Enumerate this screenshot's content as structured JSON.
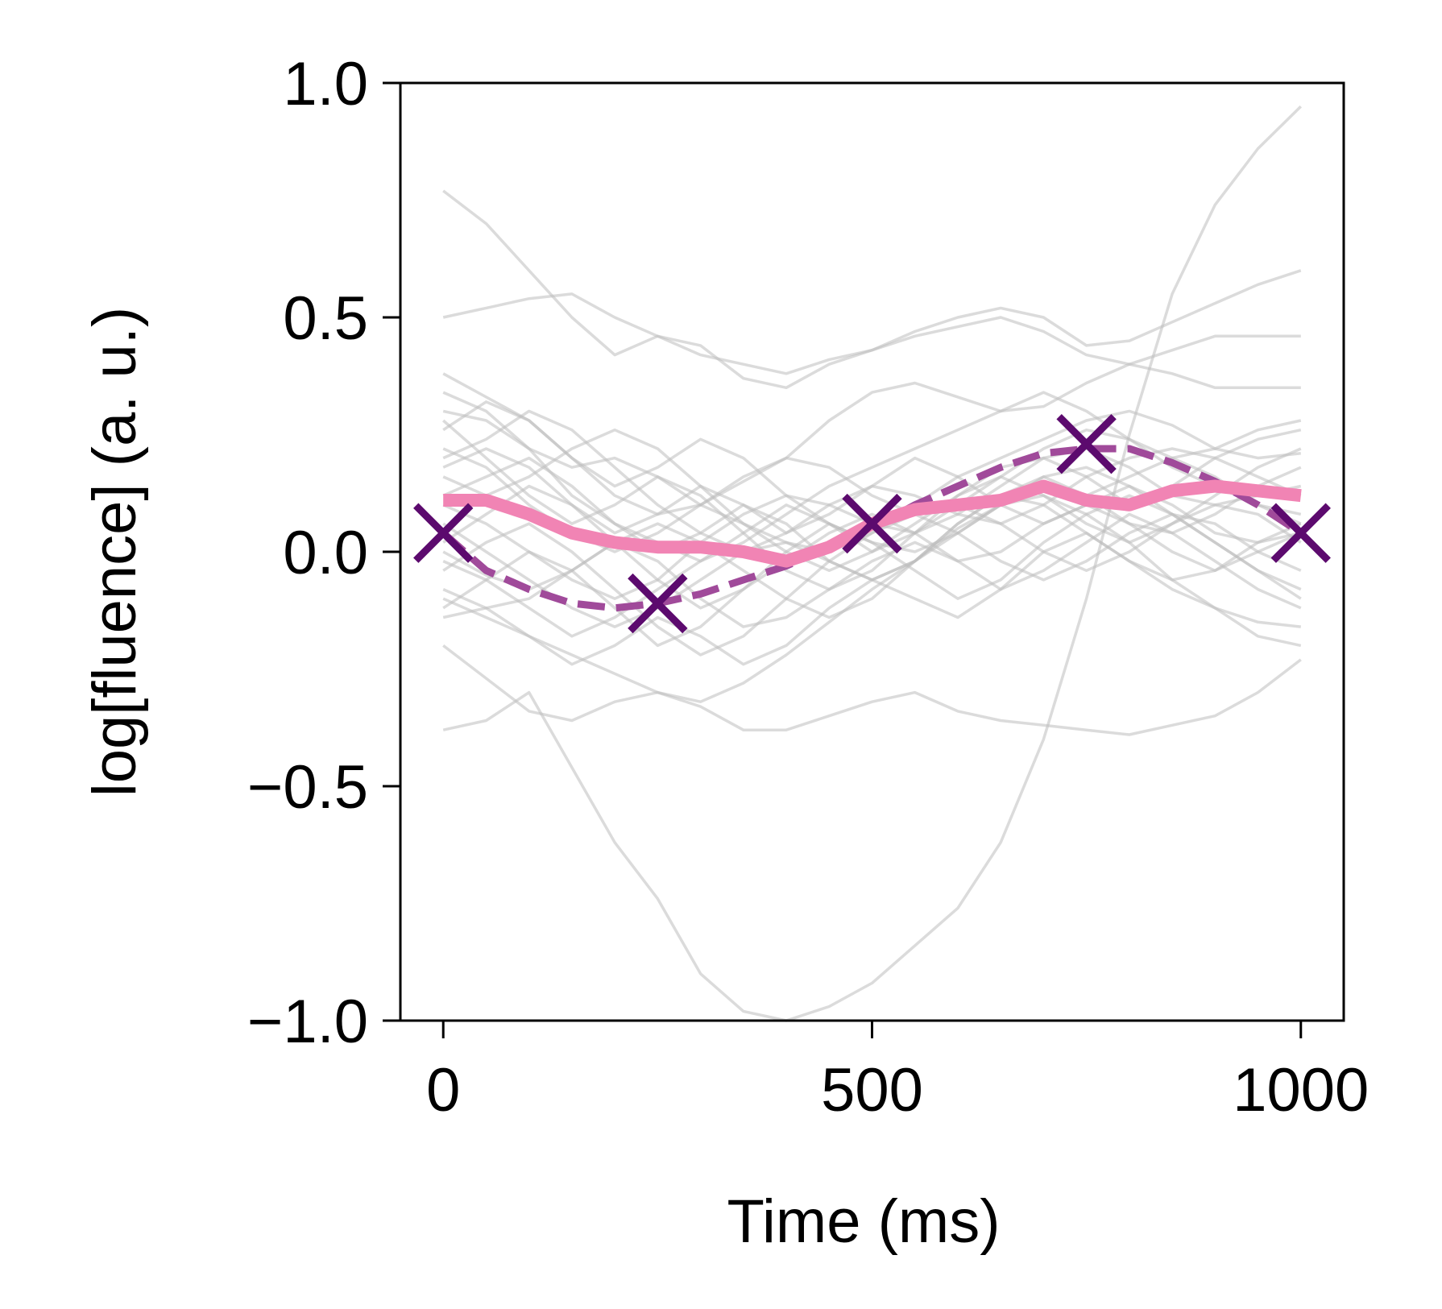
{
  "chart_data": {
    "type": "line",
    "xlabel": "Time (ms)",
    "ylabel": "log[fluence] (a. u.)",
    "xlim": [
      -50,
      1050
    ],
    "ylim": [
      -1.0,
      1.0
    ],
    "x_ticks": [
      0,
      500,
      1000
    ],
    "x_tick_labels": [
      "0",
      "500",
      "1000"
    ],
    "y_ticks": [
      -1.0,
      -0.5,
      0.0,
      0.5,
      1.0
    ],
    "y_tick_labels": [
      "−1.0",
      "−0.5",
      "0.0",
      "0.5",
      "1.0"
    ],
    "grid": false,
    "legend": "none",
    "colors": {
      "traces": "#bdbdbd",
      "mean": "#f184b4",
      "fit": "#a04a9a",
      "markers": "#5c0a6e"
    },
    "mean": {
      "x": [
        0,
        50,
        100,
        150,
        200,
        250,
        300,
        350,
        400,
        450,
        500,
        550,
        600,
        650,
        700,
        750,
        800,
        850,
        900,
        950,
        1000
      ],
      "values": [
        0.11,
        0.11,
        0.08,
        0.04,
        0.02,
        0.01,
        0.01,
        0.0,
        -0.02,
        0.01,
        0.06,
        0.09,
        0.1,
        0.11,
        0.14,
        0.11,
        0.1,
        0.13,
        0.14,
        0.13,
        0.12
      ]
    },
    "fit": {
      "x": [
        0,
        50,
        100,
        150,
        200,
        250,
        300,
        350,
        400,
        450,
        500,
        550,
        600,
        650,
        700,
        750,
        800,
        850,
        900,
        950,
        1000
      ],
      "values": [
        0.04,
        -0.04,
        -0.08,
        -0.11,
        -0.12,
        -0.11,
        -0.09,
        -0.06,
        -0.03,
        0.01,
        0.05,
        0.1,
        0.14,
        0.18,
        0.21,
        0.22,
        0.22,
        0.19,
        0.15,
        0.1,
        0.04
      ]
    },
    "markers": {
      "x": [
        0,
        250,
        500,
        750,
        1000
      ],
      "values": [
        0.04,
        -0.11,
        0.06,
        0.23,
        0.04
      ]
    },
    "traces": [
      {
        "x": [
          0,
          50,
          100,
          150,
          200,
          250,
          300,
          350,
          400,
          450,
          500,
          550,
          600,
          650,
          700,
          750,
          800,
          850,
          900,
          950,
          1000
        ],
        "values": [
          -0.38,
          -0.36,
          -0.3,
          -0.46,
          -0.62,
          -0.74,
          -0.9,
          -0.98,
          -1.0,
          -0.97,
          -0.92,
          -0.84,
          -0.76,
          -0.62,
          -0.4,
          -0.1,
          0.25,
          0.55,
          0.74,
          0.86,
          0.95
        ]
      },
      {
        "x": [
          0,
          50,
          100,
          150,
          200,
          250,
          300,
          350,
          400,
          450,
          500,
          550,
          600,
          650,
          700,
          750,
          800,
          850,
          900,
          950,
          1000
        ],
        "values": [
          0.77,
          0.7,
          0.6,
          0.5,
          0.42,
          0.46,
          0.44,
          0.37,
          0.35,
          0.4,
          0.43,
          0.47,
          0.5,
          0.52,
          0.5,
          0.44,
          0.45,
          0.49,
          0.53,
          0.57,
          0.6
        ]
      },
      {
        "x": [
          0,
          50,
          100,
          150,
          200,
          250,
          300,
          350,
          400,
          450,
          500,
          550,
          600,
          650,
          700,
          750,
          800,
          850,
          900,
          950,
          1000
        ],
        "values": [
          0.5,
          0.52,
          0.54,
          0.55,
          0.5,
          0.46,
          0.42,
          0.4,
          0.38,
          0.41,
          0.43,
          0.46,
          0.48,
          0.5,
          0.47,
          0.42,
          0.4,
          0.43,
          0.46,
          0.46,
          0.46
        ]
      },
      {
        "x": [
          0,
          50,
          100,
          150,
          200,
          250,
          300,
          350,
          400,
          450,
          500,
          550,
          600,
          650,
          700,
          750,
          800,
          850,
          900,
          950,
          1000
        ],
        "values": [
          -0.2,
          -0.27,
          -0.34,
          -0.36,
          -0.32,
          -0.3,
          -0.33,
          -0.38,
          -0.38,
          -0.35,
          -0.32,
          -0.3,
          -0.34,
          -0.36,
          -0.37,
          -0.38,
          -0.39,
          -0.37,
          -0.35,
          -0.3,
          -0.23
        ]
      },
      {
        "x": [
          0,
          50,
          100,
          150,
          200,
          250,
          300,
          350,
          400,
          450,
          500,
          550,
          600,
          650,
          700,
          750,
          800,
          850,
          900,
          950,
          1000
        ],
        "values": [
          0.38,
          0.33,
          0.28,
          0.2,
          0.12,
          0.08,
          0.1,
          0.15,
          0.2,
          0.28,
          0.34,
          0.36,
          0.33,
          0.3,
          0.31,
          0.36,
          0.4,
          0.38,
          0.35,
          0.35,
          0.35
        ]
      },
      {
        "x": [
          0,
          50,
          100,
          150,
          200,
          250,
          300,
          350,
          400,
          450,
          500,
          550,
          600,
          650,
          700,
          750,
          800,
          850,
          900,
          950,
          1000
        ],
        "values": [
          -0.1,
          -0.14,
          -0.18,
          -0.22,
          -0.26,
          -0.3,
          -0.32,
          -0.28,
          -0.22,
          -0.15,
          -0.08,
          -0.02,
          0.05,
          0.1,
          0.12,
          0.08,
          0.02,
          -0.06,
          -0.12,
          -0.18,
          -0.2
        ]
      },
      {
        "x": [
          0,
          50,
          100,
          150,
          200,
          250,
          300,
          350,
          400,
          450,
          500,
          550,
          600,
          650,
          700,
          750,
          800,
          850,
          900,
          950,
          1000
        ],
        "values": [
          0.3,
          0.28,
          0.22,
          0.18,
          0.2,
          0.16,
          0.1,
          0.06,
          0.02,
          0.0,
          0.04,
          0.1,
          0.16,
          0.2,
          0.24,
          0.28,
          0.3,
          0.27,
          0.22,
          0.2,
          0.21
        ]
      },
      {
        "x": [
          0,
          50,
          100,
          150,
          200,
          250,
          300,
          350,
          400,
          450,
          500,
          550,
          600,
          650,
          700,
          750,
          800,
          850,
          900,
          950,
          1000
        ],
        "values": [
          0.0,
          -0.05,
          -0.08,
          -0.04,
          0.02,
          0.06,
          0.02,
          -0.04,
          -0.1,
          -0.14,
          -0.1,
          -0.02,
          0.06,
          0.12,
          0.16,
          0.18,
          0.14,
          0.08,
          0.02,
          -0.04,
          -0.08
        ]
      },
      {
        "x": [
          0,
          50,
          100,
          150,
          200,
          250,
          300,
          350,
          400,
          450,
          500,
          550,
          600,
          650,
          700,
          750,
          800,
          850,
          900,
          950,
          1000
        ],
        "values": [
          0.2,
          0.24,
          0.3,
          0.26,
          0.18,
          0.1,
          0.04,
          0.0,
          0.04,
          0.1,
          0.14,
          0.12,
          0.08,
          0.06,
          0.1,
          0.16,
          0.2,
          0.22,
          0.2,
          0.16,
          0.12
        ]
      },
      {
        "x": [
          0,
          50,
          100,
          150,
          200,
          250,
          300,
          350,
          400,
          450,
          500,
          550,
          600,
          650,
          700,
          750,
          800,
          850,
          900,
          950,
          1000
        ],
        "values": [
          -0.14,
          -0.12,
          -0.18,
          -0.24,
          -0.2,
          -0.14,
          -0.18,
          -0.24,
          -0.2,
          -0.12,
          -0.06,
          -0.1,
          -0.14,
          -0.08,
          0.0,
          0.04,
          -0.02,
          -0.08,
          -0.12,
          -0.15,
          -0.16
        ]
      },
      {
        "x": [
          0,
          50,
          100,
          150,
          200,
          250,
          300,
          350,
          400,
          450,
          500,
          550,
          600,
          650,
          700,
          750,
          800,
          850,
          900,
          950,
          1000
        ],
        "values": [
          0.1,
          0.06,
          0.0,
          -0.06,
          -0.1,
          -0.06,
          0.02,
          0.08,
          0.12,
          0.1,
          0.06,
          0.04,
          0.08,
          0.14,
          0.2,
          0.22,
          0.18,
          0.12,
          0.1,
          0.12,
          0.14
        ]
      },
      {
        "x": [
          0,
          50,
          100,
          150,
          200,
          250,
          300,
          350,
          400,
          450,
          500,
          550,
          600,
          650,
          700,
          750,
          800,
          850,
          900,
          950,
          1000
        ],
        "values": [
          0.26,
          0.32,
          0.28,
          0.2,
          0.14,
          0.18,
          0.24,
          0.2,
          0.12,
          0.06,
          0.02,
          0.0,
          0.04,
          0.1,
          0.16,
          0.12,
          0.06,
          0.04,
          0.08,
          0.14,
          0.18
        ]
      },
      {
        "x": [
          0,
          50,
          100,
          150,
          200,
          250,
          300,
          350,
          400,
          450,
          500,
          550,
          600,
          650,
          700,
          750,
          800,
          850,
          900,
          950,
          1000
        ],
        "values": [
          -0.04,
          0.02,
          0.06,
          0.0,
          -0.08,
          -0.16,
          -0.22,
          -0.18,
          -0.1,
          -0.02,
          0.04,
          0.08,
          0.04,
          -0.02,
          -0.06,
          -0.02,
          0.04,
          0.08,
          0.06,
          0.0,
          -0.04
        ]
      },
      {
        "x": [
          0,
          50,
          100,
          150,
          200,
          250,
          300,
          350,
          400,
          450,
          500,
          550,
          600,
          650,
          700,
          750,
          800,
          850,
          900,
          950,
          1000
        ],
        "values": [
          0.16,
          0.12,
          0.16,
          0.22,
          0.26,
          0.22,
          0.14,
          0.06,
          0.0,
          -0.04,
          0.0,
          0.06,
          0.12,
          0.16,
          0.12,
          0.06,
          0.02,
          0.06,
          0.12,
          0.18,
          0.22
        ]
      },
      {
        "x": [
          0,
          50,
          100,
          150,
          200,
          250,
          300,
          350,
          400,
          450,
          500,
          550,
          600,
          650,
          700,
          750,
          800,
          850,
          900,
          950,
          1000
        ],
        "values": [
          0.06,
          0.0,
          -0.06,
          -0.12,
          -0.16,
          -0.12,
          -0.06,
          0.0,
          0.02,
          -0.02,
          -0.06,
          -0.02,
          0.06,
          0.12,
          0.1,
          0.04,
          -0.02,
          -0.06,
          -0.04,
          0.02,
          0.06
        ]
      },
      {
        "x": [
          0,
          50,
          100,
          150,
          200,
          250,
          300,
          350,
          400,
          450,
          500,
          550,
          600,
          650,
          700,
          750,
          800,
          850,
          900,
          950,
          1000
        ],
        "values": [
          0.22,
          0.18,
          0.1,
          0.04,
          0.0,
          0.04,
          0.1,
          0.16,
          0.2,
          0.18,
          0.12,
          0.08,
          0.1,
          0.16,
          0.22,
          0.26,
          0.24,
          0.18,
          0.14,
          0.1,
          0.08
        ]
      },
      {
        "x": [
          0,
          50,
          100,
          150,
          200,
          250,
          300,
          350,
          400,
          450,
          500,
          550,
          600,
          650,
          700,
          750,
          800,
          850,
          900,
          950,
          1000
        ],
        "values": [
          -0.08,
          -0.12,
          -0.1,
          -0.04,
          0.02,
          -0.02,
          -0.1,
          -0.16,
          -0.14,
          -0.08,
          -0.02,
          0.02,
          -0.02,
          -0.08,
          -0.04,
          0.02,
          0.08,
          0.04,
          -0.02,
          -0.08,
          -0.12
        ]
      },
      {
        "x": [
          0,
          50,
          100,
          150,
          200,
          250,
          300,
          350,
          400,
          450,
          500,
          550,
          600,
          650,
          700,
          750,
          800,
          850,
          900,
          950,
          1000
        ],
        "values": [
          0.34,
          0.3,
          0.22,
          0.12,
          0.06,
          0.02,
          -0.02,
          0.02,
          0.08,
          0.14,
          0.18,
          0.22,
          0.26,
          0.3,
          0.34,
          0.3,
          0.24,
          0.2,
          0.22,
          0.26,
          0.28
        ]
      },
      {
        "x": [
          0,
          50,
          100,
          150,
          200,
          250,
          300,
          350,
          400,
          450,
          500,
          550,
          600,
          650,
          700,
          750,
          800,
          850,
          900,
          950,
          1000
        ],
        "values": [
          0.02,
          0.08,
          0.14,
          0.1,
          0.02,
          -0.06,
          -0.12,
          -0.08,
          -0.02,
          0.04,
          0.08,
          0.04,
          -0.02,
          0.0,
          0.06,
          0.1,
          0.06,
          0.0,
          -0.04,
          0.0,
          0.04
        ]
      },
      {
        "x": [
          0,
          50,
          100,
          150,
          200,
          250,
          300,
          350,
          400,
          450,
          500,
          550,
          600,
          650,
          700,
          750,
          800,
          850,
          900,
          950,
          1000
        ],
        "values": [
          0.12,
          0.16,
          0.2,
          0.14,
          0.06,
          0.0,
          0.04,
          0.1,
          0.06,
          -0.02,
          -0.06,
          -0.02,
          0.04,
          0.1,
          0.14,
          0.12,
          0.16,
          0.2,
          0.16,
          0.1,
          0.06
        ]
      },
      {
        "x": [
          0,
          50,
          100,
          150,
          200,
          250,
          300,
          350,
          400,
          450,
          500,
          550,
          600,
          650,
          700,
          750,
          800,
          850,
          900,
          950,
          1000
        ],
        "values": [
          -0.02,
          -0.06,
          -0.12,
          -0.18,
          -0.14,
          -0.08,
          -0.02,
          0.04,
          0.1,
          0.06,
          0.0,
          0.04,
          0.1,
          0.06,
          0.0,
          -0.04,
          0.0,
          0.06,
          0.1,
          0.08,
          0.02
        ]
      },
      {
        "x": [
          0,
          50,
          100,
          150,
          200,
          250,
          300,
          350,
          400,
          450,
          500,
          550,
          600,
          650,
          700,
          750,
          800,
          850,
          900,
          950,
          1000
        ],
        "values": [
          0.18,
          0.22,
          0.18,
          0.1,
          0.04,
          0.08,
          0.14,
          0.1,
          0.04,
          0.08,
          0.14,
          0.2,
          0.16,
          0.1,
          0.06,
          0.1,
          0.14,
          0.1,
          0.04,
          0.02,
          0.04
        ]
      },
      {
        "x": [
          0,
          50,
          100,
          150,
          200,
          250,
          300,
          350,
          400,
          450,
          500,
          550,
          600,
          650,
          700,
          750,
          800,
          850,
          900,
          950,
          1000
        ],
        "values": [
          0.28,
          0.2,
          0.12,
          0.06,
          0.1,
          0.16,
          0.12,
          0.04,
          -0.04,
          -0.08,
          -0.04,
          0.04,
          0.12,
          0.18,
          0.2,
          0.16,
          0.1,
          0.14,
          0.2,
          0.24,
          0.26
        ]
      },
      {
        "x": [
          0,
          50,
          100,
          150,
          200,
          250,
          300,
          350,
          400,
          450,
          500,
          550,
          600,
          650,
          700,
          750,
          800,
          850,
          900,
          950,
          1000
        ],
        "values": [
          -0.12,
          -0.06,
          0.0,
          -0.04,
          -0.12,
          -0.2,
          -0.16,
          -0.08,
          0.0,
          0.06,
          0.02,
          -0.04,
          -0.1,
          -0.06,
          0.02,
          0.08,
          0.12,
          0.08,
          0.02,
          -0.04,
          -0.1
        ]
      }
    ]
  }
}
